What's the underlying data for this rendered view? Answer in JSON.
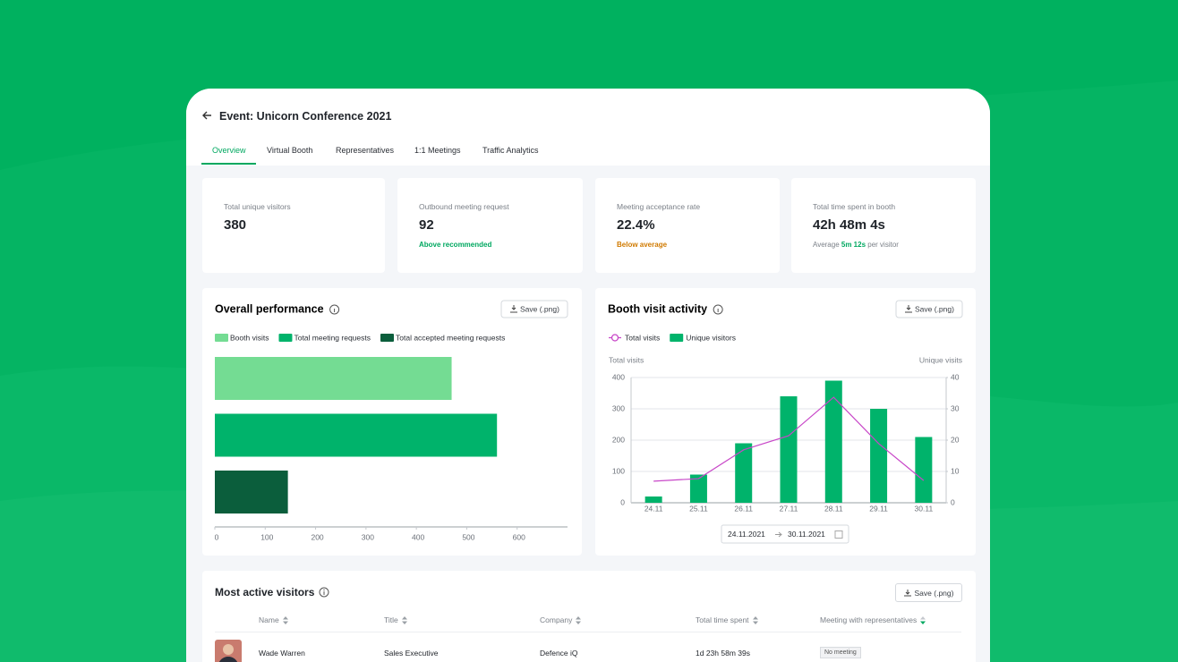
{
  "header": {
    "title": "Event: Unicorn Conference 2021"
  },
  "tabs": [
    "Overview",
    "Virtual Booth",
    "Representatives",
    "1:1 Meetings",
    "Traffic Analytics"
  ],
  "stats": [
    {
      "label": "Total unique visitors",
      "value": "380"
    },
    {
      "label": "Outbound meeting request",
      "value": "92",
      "note": "Above recommended"
    },
    {
      "label": "Meeting acceptance rate",
      "value": "22.4%",
      "note": "Below average"
    },
    {
      "label": "Total time spent in booth",
      "value": "42h 48m 4s",
      "note": {
        "prefix": "Average",
        "highlight": "5m 12s",
        "suffix": "per visitor"
      }
    }
  ],
  "chart_data": [
    {
      "type": "bar",
      "orientation": "horizontal",
      "title": "Overall performance",
      "save_label": "Save (.png)",
      "grid": false,
      "series": [
        {
          "name": "Booth visits",
          "color": "#74dc93",
          "values": [
            470
          ]
        },
        {
          "name": "Total meeting requests",
          "color": "#00b36b",
          "values": [
            560
          ]
        },
        {
          "name": "Total accepted meeting requests",
          "color": "#0b5e3c",
          "values": [
            145
          ]
        }
      ],
      "xlim": [
        0,
        700
      ],
      "xticks": [
        0,
        100,
        200,
        300,
        400,
        500,
        600
      ]
    },
    {
      "type": "combo",
      "title": "Booth visit activity",
      "save_label": "Save (.png)",
      "grid": true,
      "y_label": "Total visits",
      "y2_label": "Unique visits",
      "categories": [
        "24.11",
        "25.11",
        "26.11",
        "27.11",
        "28.11",
        "29.11",
        "30.11"
      ],
      "series": [
        {
          "name": "Total visits",
          "type": "line",
          "color": "#c847c8",
          "values": [
            69,
            77,
            169,
            214,
            337,
            189,
            71
          ]
        },
        {
          "name": "Unique visitors",
          "type": "bar",
          "color": "#00b36b",
          "axis": "y2",
          "values": [
            2,
            9,
            19,
            34,
            39,
            30,
            21
          ]
        }
      ],
      "ylim": [
        0,
        400
      ],
      "yticks": [
        0,
        100,
        200,
        300,
        400
      ],
      "y2lim": [
        0,
        40
      ],
      "y2ticks": [
        0,
        10,
        20,
        30,
        40
      ],
      "date_range": {
        "start": "24.11.2021",
        "end": "30.11.2021"
      }
    }
  ],
  "table": {
    "title": "Most active visitors",
    "save_label": "Save (.png)",
    "columns": [
      "Name",
      "Title",
      "Company",
      "Total time spent",
      "Meeting with representatives"
    ],
    "rows": [
      [
        "Wade Warren",
        "Sales Executive",
        "Defence iQ",
        "1d 23h 58m 39s",
        "No meeting"
      ]
    ]
  }
}
